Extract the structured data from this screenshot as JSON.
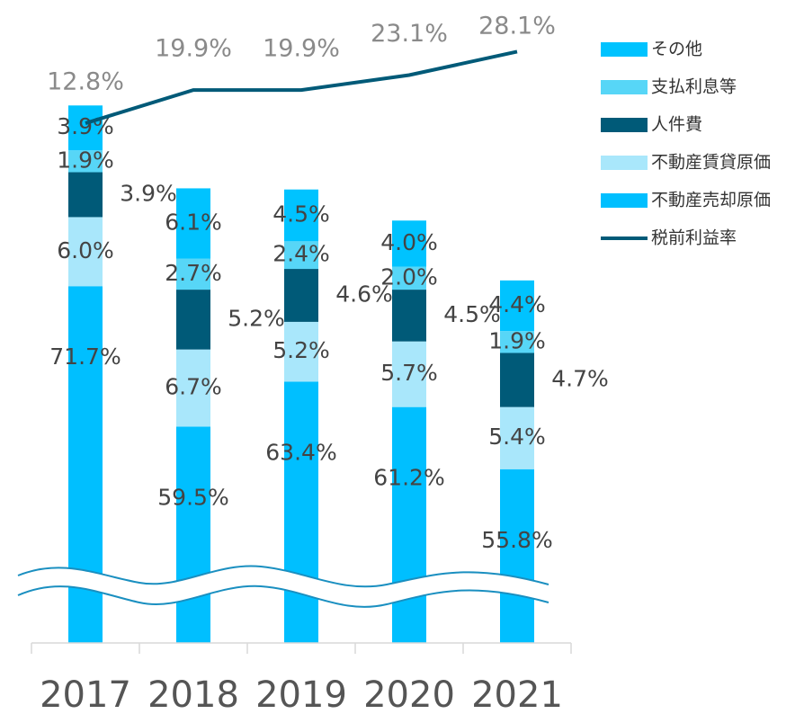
{
  "chart_data": {
    "type": "bar",
    "stacked": true,
    "categories": [
      "2017",
      "2018",
      "2019",
      "2020",
      "2021"
    ],
    "series": [
      {
        "name": "不動産売却原価",
        "color": "#00bfff",
        "values": [
          71.7,
          59.5,
          63.4,
          61.2,
          55.8
        ]
      },
      {
        "name": "不動産賃貸原価",
        "color": "#a9e7fb",
        "values": [
          6.0,
          6.7,
          5.2,
          5.7,
          5.4
        ]
      },
      {
        "name": "人件費",
        "color": "#005a78",
        "values": [
          3.9,
          5.2,
          4.6,
          4.5,
          4.7
        ]
      },
      {
        "name": "支払利息等",
        "color": "#57d6f7",
        "values": [
          1.9,
          2.7,
          2.4,
          2.0,
          1.9
        ]
      },
      {
        "name": "その他",
        "color": "#00c3ff",
        "values": [
          3.9,
          6.1,
          4.5,
          4.0,
          4.4
        ]
      }
    ],
    "line_series": {
      "name": "税前利益率",
      "color": "#005a78",
      "values": [
        12.8,
        19.9,
        19.9,
        23.1,
        28.1
      ]
    }
  }
}
